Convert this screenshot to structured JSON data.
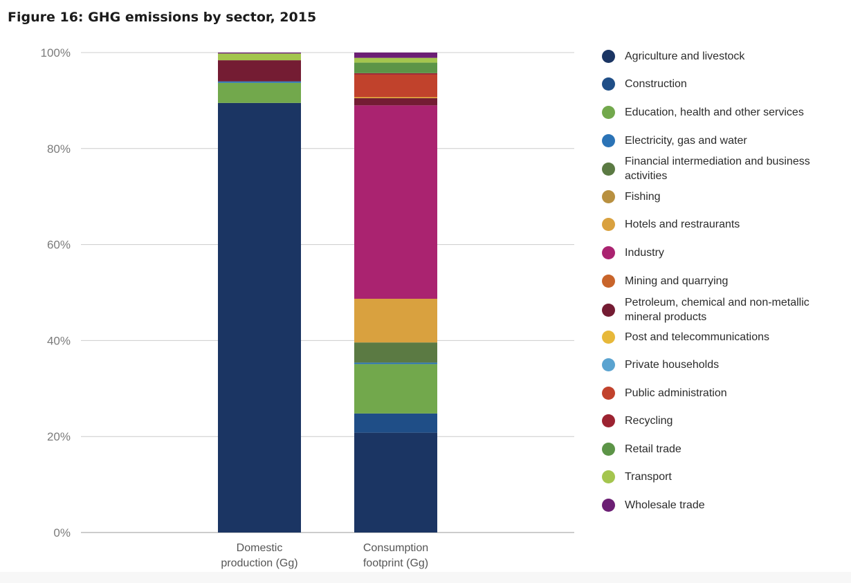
{
  "title": "Figure 16: GHG emissions by sector, 2015",
  "chart_data": {
    "type": "bar",
    "stacked": true,
    "categories": [
      [
        "Domestic",
        "production (Gg)"
      ],
      [
        "Consumption",
        "footprint (Gg)"
      ]
    ],
    "y_ticks": [
      "0%",
      "20%",
      "40%",
      "60%",
      "80%",
      "100%"
    ],
    "ylim": [
      0,
      100
    ],
    "grid": true,
    "legend_position": "right",
    "series": [
      {
        "name": "Agriculture and livestock",
        "color": "#1b3563",
        "values": [
          89.5,
          20.8
        ]
      },
      {
        "name": "Construction",
        "color": "#1f4e87",
        "values": [
          0,
          4.0
        ]
      },
      {
        "name": "Education, health and other services",
        "color": "#72a84c",
        "values": [
          4.2,
          10.3
        ]
      },
      {
        "name": "Electricity, gas and water",
        "color": "#2b73b6",
        "values": [
          0.3,
          0.3
        ]
      },
      {
        "name": "Financial intermediation and business activities",
        "color": "#5b7a43",
        "values": [
          0,
          4.2
        ]
      },
      {
        "name": "Fishing",
        "color": "#b89040",
        "values": [
          0,
          0
        ]
      },
      {
        "name": "Hotels and restraurants",
        "color": "#d9a13f",
        "values": [
          0,
          9.1
        ]
      },
      {
        "name": "Industry",
        "color": "#aa2370",
        "values": [
          0,
          40.3
        ]
      },
      {
        "name": "Mining and quarrying",
        "color": "#c8642a",
        "values": [
          0,
          0
        ]
      },
      {
        "name": "Petroleum, chemical and non-metallic mineral products",
        "color": "#741c33",
        "values": [
          4.4,
          1.5
        ]
      },
      {
        "name": "Post and telecommunications",
        "color": "#e7b83a",
        "values": [
          0,
          0.2
        ]
      },
      {
        "name": "Private households",
        "color": "#5aa3d0",
        "values": [
          0,
          0
        ]
      },
      {
        "name": "Public administration",
        "color": "#c1422c",
        "values": [
          0,
          4.7
        ]
      },
      {
        "name": "Recycling",
        "color": "#9c2331",
        "values": [
          0,
          0.3
        ]
      },
      {
        "name": "Retail trade",
        "color": "#5c9447",
        "values": [
          0,
          2.2
        ]
      },
      {
        "name": "Transport",
        "color": "#a4c54e",
        "values": [
          1.4,
          1.0
        ]
      },
      {
        "name": "Wholesale trade",
        "color": "#6c1f74",
        "values": [
          0.2,
          1.1
        ]
      }
    ]
  }
}
